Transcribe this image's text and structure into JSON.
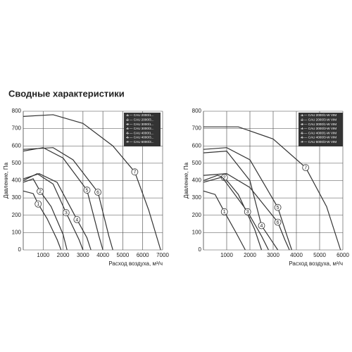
{
  "heading": "Сводные характеристики",
  "chart_data": [
    {
      "type": "line",
      "y_label": "Давление, Па",
      "x_label": "Расход воздуха, м³/ч",
      "xlim": [
        0,
        7000
      ],
      "xticks": [
        1000,
        2000,
        3000,
        4000,
        5000,
        6000,
        7000
      ],
      "ylim": [
        0,
        800
      ],
      "yticks": [
        0,
        100,
        200,
        300,
        400,
        500,
        600,
        700,
        800
      ],
      "grid": true,
      "series": [
        {
          "name": "1 — CAU 2000/1...",
          "label": "1",
          "color": "#333",
          "x": [
            0,
            500,
            750,
            1200,
            1700,
            1900
          ],
          "values": [
            340,
            325,
            265,
            180,
            60,
            0
          ]
        },
        {
          "name": "2 — CAU 2000/3...",
          "label": "2",
          "color": "#333",
          "x": [
            0,
            500,
            850,
            1400,
            2000,
            2200
          ],
          "values": [
            390,
            410,
            338,
            250,
            90,
            0
          ]
        },
        {
          "name": "3 — CAU 3000/1...",
          "label": "3",
          "color": "#333",
          "x": [
            0,
            700,
            1500,
            2150,
            2800,
            3000
          ],
          "values": [
            400,
            440,
            380,
            215,
            60,
            0
          ]
        },
        {
          "name": "4 — CAU 3000/3...",
          "label": "4",
          "color": "#333",
          "x": [
            0,
            800,
            1700,
            2700,
            3200,
            3400
          ],
          "values": [
            410,
            440,
            390,
            175,
            70,
            0
          ]
        },
        {
          "name": "5 — CAU 4000/1...",
          "label": "5",
          "color": "#333",
          "x": [
            0,
            1000,
            2000,
            3200,
            3800,
            4000
          ],
          "values": [
            570,
            590,
            530,
            345,
            80,
            0
          ]
        },
        {
          "name": "6 — CAU 4000/3...",
          "label": "6",
          "color": "#333",
          "x": [
            0,
            1500,
            2500,
            3750,
            4300,
            4500
          ],
          "values": [
            580,
            590,
            520,
            333,
            80,
            0
          ]
        },
        {
          "name": "7 — CAU 6000/3...",
          "label": "7",
          "color": "#333",
          "x": [
            0,
            1500,
            3000,
            4500,
            5600,
            6300,
            6900
          ],
          "values": [
            770,
            780,
            730,
            600,
            450,
            230,
            0
          ]
        }
      ]
    },
    {
      "type": "line",
      "y_label": "Давление, Па",
      "x_label": "Расход воздуха, м³/ч",
      "xlim": [
        0,
        6000
      ],
      "xticks": [
        1000,
        2000,
        3000,
        4000,
        5000,
        6000
      ],
      "ylim": [
        0,
        800
      ],
      "yticks": [
        0,
        100,
        200,
        300,
        400,
        500,
        600,
        700,
        800
      ],
      "grid": true,
      "series": [
        {
          "name": "1 — CAU 2000/1-W VIM",
          "label": "1",
          "color": "#333",
          "x": [
            0,
            500,
            900,
            1400,
            1800
          ],
          "values": [
            340,
            320,
            220,
            100,
            0
          ]
        },
        {
          "name": "2 — CAU 2000/3-W VIM",
          "label": "2",
          "color": "#333",
          "x": [
            0,
            600,
            900,
            1500,
            2200,
            2500
          ],
          "values": [
            400,
            430,
            418,
            320,
            120,
            0
          ]
        },
        {
          "name": "3 — CAU 3000/1-W VIM",
          "label": "3",
          "color": "#333",
          "x": [
            0,
            800,
            1900,
            2500,
            2800
          ],
          "values": [
            390,
            420,
            220,
            80,
            0
          ]
        },
        {
          "name": "4 — CAU 3000/3-W VIM",
          "label": "4",
          "color": "#333",
          "x": [
            0,
            1000,
            2000,
            2500,
            3000,
            3200
          ],
          "values": [
            560,
            570,
            400,
            140,
            40,
            0
          ]
        },
        {
          "name": "5 — CAU 4000/1-W VIM",
          "label": "5",
          "color": "#333",
          "x": [
            0,
            1000,
            2000,
            3200,
            3600,
            3800
          ],
          "values": [
            580,
            590,
            520,
            245,
            80,
            0
          ]
        },
        {
          "name": "6 — CAU 4000/3-W VIM",
          "label": "6",
          "color": "#333",
          "x": [
            0,
            1000,
            2000,
            3200,
            3500,
            3700
          ],
          "values": [
            430,
            440,
            360,
            160,
            60,
            0
          ]
        },
        {
          "name": "7 — CAU 6000/3-W VIM",
          "label": "7",
          "color": "#333",
          "x": [
            0,
            1500,
            3000,
            4400,
            5300,
            5900
          ],
          "values": [
            710,
            710,
            640,
            475,
            250,
            0
          ]
        }
      ]
    }
  ]
}
